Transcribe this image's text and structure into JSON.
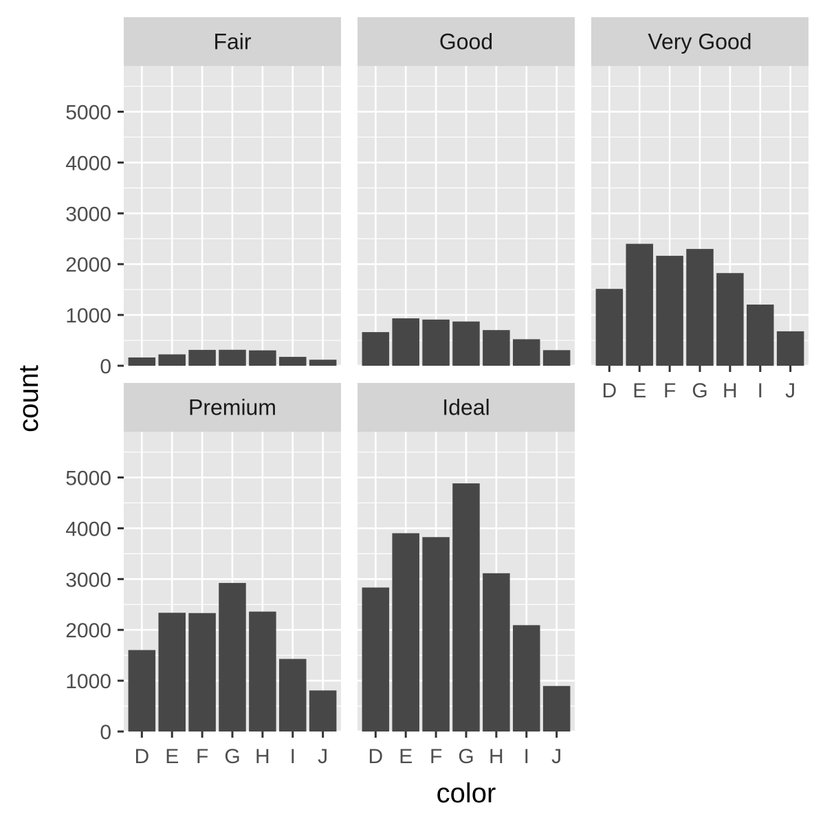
{
  "chart_data": {
    "type": "bar",
    "layout": "facet_wrap",
    "xlabel": "color",
    "ylabel": "count",
    "categories": [
      "D",
      "E",
      "F",
      "G",
      "H",
      "I",
      "J"
    ],
    "ylim": [
      0,
      5900
    ],
    "yticks": [
      0,
      1000,
      2000,
      3000,
      4000,
      5000
    ],
    "ytick_labels": [
      "0",
      "1000",
      "2000",
      "3000",
      "4000",
      "5000"
    ],
    "series": [
      {
        "name": "Fair",
        "values": [
          163,
          224,
          312,
          314,
          303,
          175,
          119
        ]
      },
      {
        "name": "Good",
        "values": [
          662,
          933,
          909,
          871,
          702,
          522,
          307
        ]
      },
      {
        "name": "Very Good",
        "values": [
          1513,
          2400,
          2164,
          2299,
          1824,
          1204,
          678
        ]
      },
      {
        "name": "Premium",
        "values": [
          1603,
          2337,
          2331,
          2924,
          2360,
          1428,
          808
        ]
      },
      {
        "name": "Ideal",
        "values": [
          2834,
          3903,
          3826,
          4884,
          3115,
          2093,
          896
        ]
      }
    ]
  },
  "colors": {
    "bar": "#474747",
    "panel_bg": "#e6e6e6",
    "strip_bg": "#d4d4d4",
    "grid": "#ffffff"
  }
}
